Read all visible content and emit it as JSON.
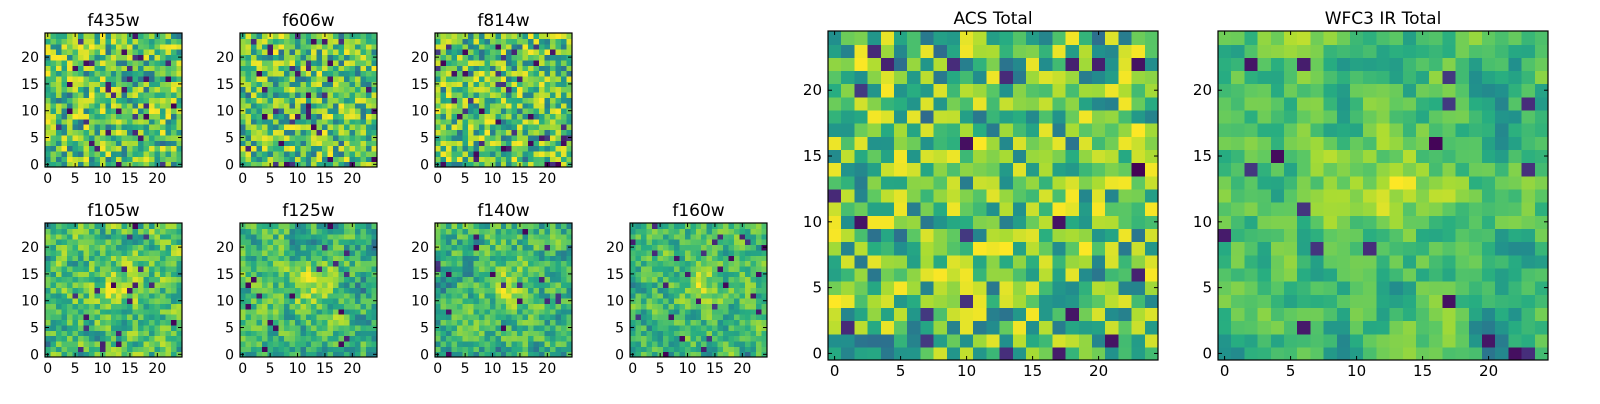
{
  "figure": {
    "colormap": "viridis",
    "colors": {
      "axes_frame": "#000000",
      "tick_text": "#000000",
      "title_text": "#000000",
      "background": "#ffffff"
    }
  },
  "chart_data": [
    {
      "type": "heatmap",
      "title": "f435w",
      "size": 25,
      "x_ticks": [
        0,
        5,
        10,
        15,
        20
      ],
      "y_ticks": [
        0,
        5,
        10,
        15,
        20
      ],
      "seed": 11,
      "smooth": 0,
      "low_fraction": 0.05
    },
    {
      "type": "heatmap",
      "title": "f606w",
      "size": 25,
      "x_ticks": [
        0,
        5,
        10,
        15,
        20
      ],
      "y_ticks": [
        0,
        5,
        10,
        15,
        20
      ],
      "seed": 23,
      "smooth": 0,
      "low_fraction": 0.05
    },
    {
      "type": "heatmap",
      "title": "f814w",
      "size": 25,
      "x_ticks": [
        0,
        5,
        10,
        15,
        20
      ],
      "y_ticks": [
        0,
        5,
        10,
        15,
        20
      ],
      "seed": 37,
      "smooth": 0,
      "low_fraction": 0.05
    },
    {
      "type": "heatmap",
      "title": "f105w",
      "size": 25,
      "x_ticks": [
        0,
        5,
        10,
        15,
        20
      ],
      "y_ticks": [
        0,
        5,
        10,
        15,
        20
      ],
      "seed": 41,
      "smooth": 1,
      "low_fraction": 0.03
    },
    {
      "type": "heatmap",
      "title": "f125w",
      "size": 25,
      "x_ticks": [
        0,
        5,
        10,
        15,
        20
      ],
      "y_ticks": [
        0,
        5,
        10,
        15,
        20
      ],
      "seed": 53,
      "smooth": 1,
      "low_fraction": 0.03
    },
    {
      "type": "heatmap",
      "title": "f140w",
      "size": 25,
      "x_ticks": [
        0,
        5,
        10,
        15,
        20
      ],
      "y_ticks": [
        0,
        5,
        10,
        15,
        20
      ],
      "seed": 67,
      "smooth": 1,
      "low_fraction": 0.03
    },
    {
      "type": "heatmap",
      "title": "f160w",
      "size": 25,
      "x_ticks": [
        0,
        5,
        10,
        15,
        20
      ],
      "y_ticks": [
        0,
        5,
        10,
        15,
        20
      ],
      "seed": 79,
      "smooth": 1,
      "low_fraction": 0.03
    },
    {
      "type": "heatmap",
      "title": "ACS Total",
      "size": 25,
      "x_ticks": [
        0,
        5,
        10,
        15,
        20
      ],
      "y_ticks": [
        0,
        5,
        10,
        15,
        20
      ],
      "seed": 97,
      "smooth": 0,
      "low_fraction": 0.025
    },
    {
      "type": "heatmap",
      "title": "WFC3 IR Total",
      "size": 25,
      "x_ticks": [
        0,
        5,
        10,
        15,
        20
      ],
      "y_ticks": [
        0,
        5,
        10,
        15,
        20
      ],
      "seed": 131,
      "smooth": 2,
      "low_fraction": 0.025
    }
  ]
}
